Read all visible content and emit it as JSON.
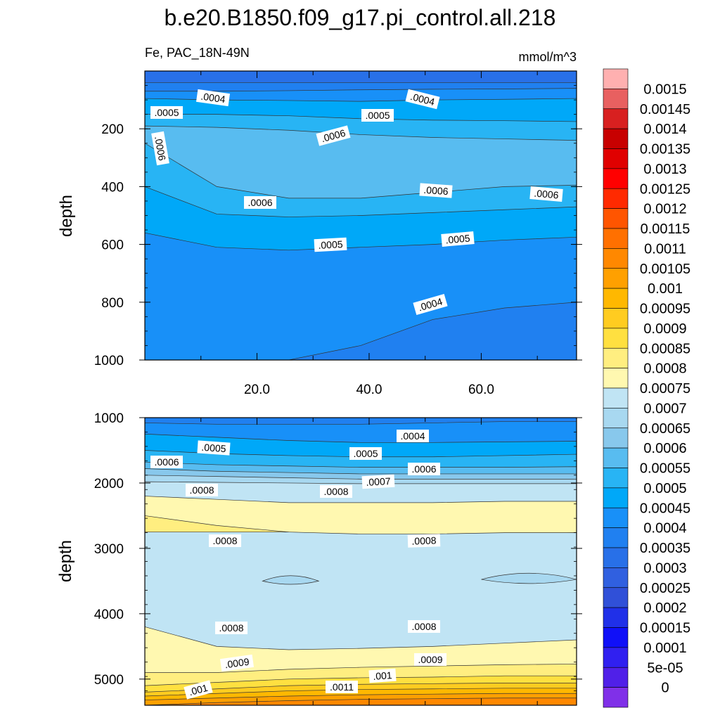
{
  "chart_data": {
    "type": "heatmap",
    "title": "b.e20.B1850.f09_g17.pi_control.all.218",
    "variable_label": "Fe, PAC_18N-49N",
    "units": "mmol/m^3",
    "panels": [
      {
        "name": "upper",
        "ylabel": "depth",
        "ylim": [
          0,
          1000
        ],
        "xlim": [
          0,
          77
        ],
        "yticks": [
          "200",
          "400",
          "600",
          "800",
          "1000"
        ],
        "xticks": [
          "20.0",
          "40.0",
          "60.0"
        ],
        "contour_labels": [
          ".0004",
          ".0004",
          ".0005",
          ".0005",
          ".0006",
          ".0006",
          ".0006",
          ".0006",
          ".0006",
          ".0005",
          ".0005",
          ".0004"
        ],
        "bands": [
          {
            "level": 0.00035,
            "depths": [
              40,
              40,
              40,
              40,
              40,
              40,
              40
            ]
          },
          {
            "level": 0.0004,
            "depths": [
              70,
              70,
              68,
              65,
              63,
              62,
              60
            ]
          },
          {
            "level": 0.00045,
            "depths": [
              95,
              100,
              102,
              105,
              100,
              98,
              95
            ]
          },
          {
            "level": 0.0005,
            "depths": [
              150,
              150,
              155,
              165,
              170,
              172,
              175
            ]
          },
          {
            "level": 0.00055,
            "depths": [
              190,
              195,
              205,
              220,
              230,
              235,
              240
            ]
          },
          {
            "level": 0.0006,
            "depths": [
              250,
              400,
              440,
              440,
              420,
              400,
              395
            ]
          },
          {
            "level": 0.00055,
            "depths": [
              400,
              495,
              505,
              500,
              490,
              480,
              470
            ]
          },
          {
            "level": 0.0005,
            "depths": [
              560,
              610,
              620,
              610,
              600,
              585,
              575
            ]
          },
          {
            "level": 0.00045,
            "depths": [
              1000,
              1000,
              1000,
              950,
              860,
              820,
              800
            ]
          },
          {
            "level": 0.0004,
            "depths": [
              1000,
              1000,
              1000,
              1000,
              1000,
              1000,
              1000
            ]
          }
        ]
      },
      {
        "name": "lower",
        "ylabel": "depth",
        "ylim": [
          1000,
          5400
        ],
        "xlim": [
          0,
          77
        ],
        "yticks": [
          "1000",
          "2000",
          "3000",
          "4000",
          "5000"
        ],
        "xticks": [],
        "contour_labels": [
          ".0004",
          ".0005",
          ".0005",
          ".0006",
          ".0006",
          ".0007",
          ".0008",
          ".0008",
          ".0008",
          ".0008",
          ".0008",
          ".0008",
          ".0009",
          ".0009",
          ".001",
          ".001",
          ".0011"
        ],
        "bands": [
          {
            "level": 0.0004,
            "depths": [
              1080,
              1100,
              1100,
              1100,
              1080,
              1060,
              1060
            ]
          },
          {
            "level": 0.00045,
            "depths": [
              1250,
              1300,
              1350,
              1380,
              1380,
              1370,
              1360
            ]
          },
          {
            "level": 0.0005,
            "depths": [
              1500,
              1550,
              1580,
              1600,
              1600,
              1580,
              1560
            ]
          },
          {
            "level": 0.00055,
            "depths": [
              1680,
              1720,
              1740,
              1760,
              1760,
              1760,
              1750
            ]
          },
          {
            "level": 0.0006,
            "depths": [
              1780,
              1820,
              1840,
              1860,
              1860,
              1860,
              1860
            ]
          },
          {
            "level": 0.00065,
            "depths": [
              1880,
              1900,
              1920,
              1940,
              1940,
              1940,
              1940
            ]
          },
          {
            "level": 0.0007,
            "depths": [
              1980,
              1990,
              2000,
              2010,
              2010,
              2010,
              2010
            ]
          },
          {
            "level": 0.00075,
            "depths": [
              2200,
              2250,
              2300,
              2300,
              2300,
              2280,
              2280
            ]
          },
          {
            "level": 0.0008,
            "depths": [
              2500,
              2650,
              2750,
              2800,
              2800,
              2780,
              2760
            ]
          },
          {
            "level": 0.00085,
            "depths": [
              2750,
              2750,
              2750,
              2780,
              2780,
              2760,
              2760
            ]
          },
          {
            "level": 0.00075,
            "depths": [
              4200,
              4500,
              4550,
              4530,
              4500,
              4450,
              4400
            ]
          },
          {
            "level": 0.0008,
            "depths": [
              4900,
              4900,
              4850,
              4820,
              4800,
              4780,
              4770
            ]
          },
          {
            "level": 0.00085,
            "depths": [
              5100,
              5050,
              5000,
              4980,
              4970,
              4950,
              4950
            ]
          },
          {
            "level": 0.0009,
            "depths": [
              5200,
              5150,
              5100,
              5080,
              5070,
              5060,
              5060
            ]
          },
          {
            "level": 0.00095,
            "depths": [
              5260,
              5220,
              5180,
              5160,
              5150,
              5140,
              5140
            ]
          },
          {
            "level": 0.001,
            "depths": [
              5320,
              5290,
              5260,
              5240,
              5230,
              5220,
              5220
            ]
          },
          {
            "level": 0.00105,
            "depths": [
              5400,
              5360,
              5330,
              5310,
              5300,
              5290,
              5290
            ]
          },
          {
            "level": 0.0011,
            "depths": [
              5400,
              5400,
              5400,
              5400,
              5400,
              5400,
              5400
            ]
          }
        ],
        "patches": [
          {
            "level": 0.0007,
            "x": [
              21,
              31
            ],
            "depth": [
              3400,
              3600
            ]
          },
          {
            "level": 0.0007,
            "x": [
              60,
              77
            ],
            "depth": [
              3350,
              3600
            ]
          }
        ]
      }
    ],
    "colorbar": {
      "labels": [
        "0.0015",
        "0.00145",
        "0.0014",
        "0.00135",
        "0.0013",
        "0.00125",
        "0.0012",
        "0.00115",
        "0.0011",
        "0.00105",
        "0.001",
        "0.00095",
        "0.0009",
        "0.00085",
        "0.0008",
        "0.00075",
        "0.0007",
        "0.00065",
        "0.0006",
        "0.00055",
        "0.0005",
        "0.00045",
        "0.0004",
        "0.00035",
        "0.0003",
        "0.00025",
        "0.0002",
        "0.00015",
        "0.0001",
        "5e-05",
        "0"
      ],
      "colors": [
        "#ffb0b0",
        "#e86060",
        "#d82020",
        "#c80000",
        "#e00000",
        "#ff0000",
        "#ff2a00",
        "#ff5500",
        "#ff7000",
        "#ff8800",
        "#ffa000",
        "#ffb800",
        "#ffcc20",
        "#ffe040",
        "#ffee80",
        "#fff8b0",
        "#c0e4f4",
        "#a8d8f0",
        "#88c8ec",
        "#58bcf0",
        "#28b4f4",
        "#00a8f8",
        "#1890f8",
        "#2080f0",
        "#2870e8",
        "#3060e0",
        "#3050d8",
        "#2030e8",
        "#1010f8",
        "#3020f0",
        "#5020e8",
        "#8030e8"
      ]
    }
  }
}
